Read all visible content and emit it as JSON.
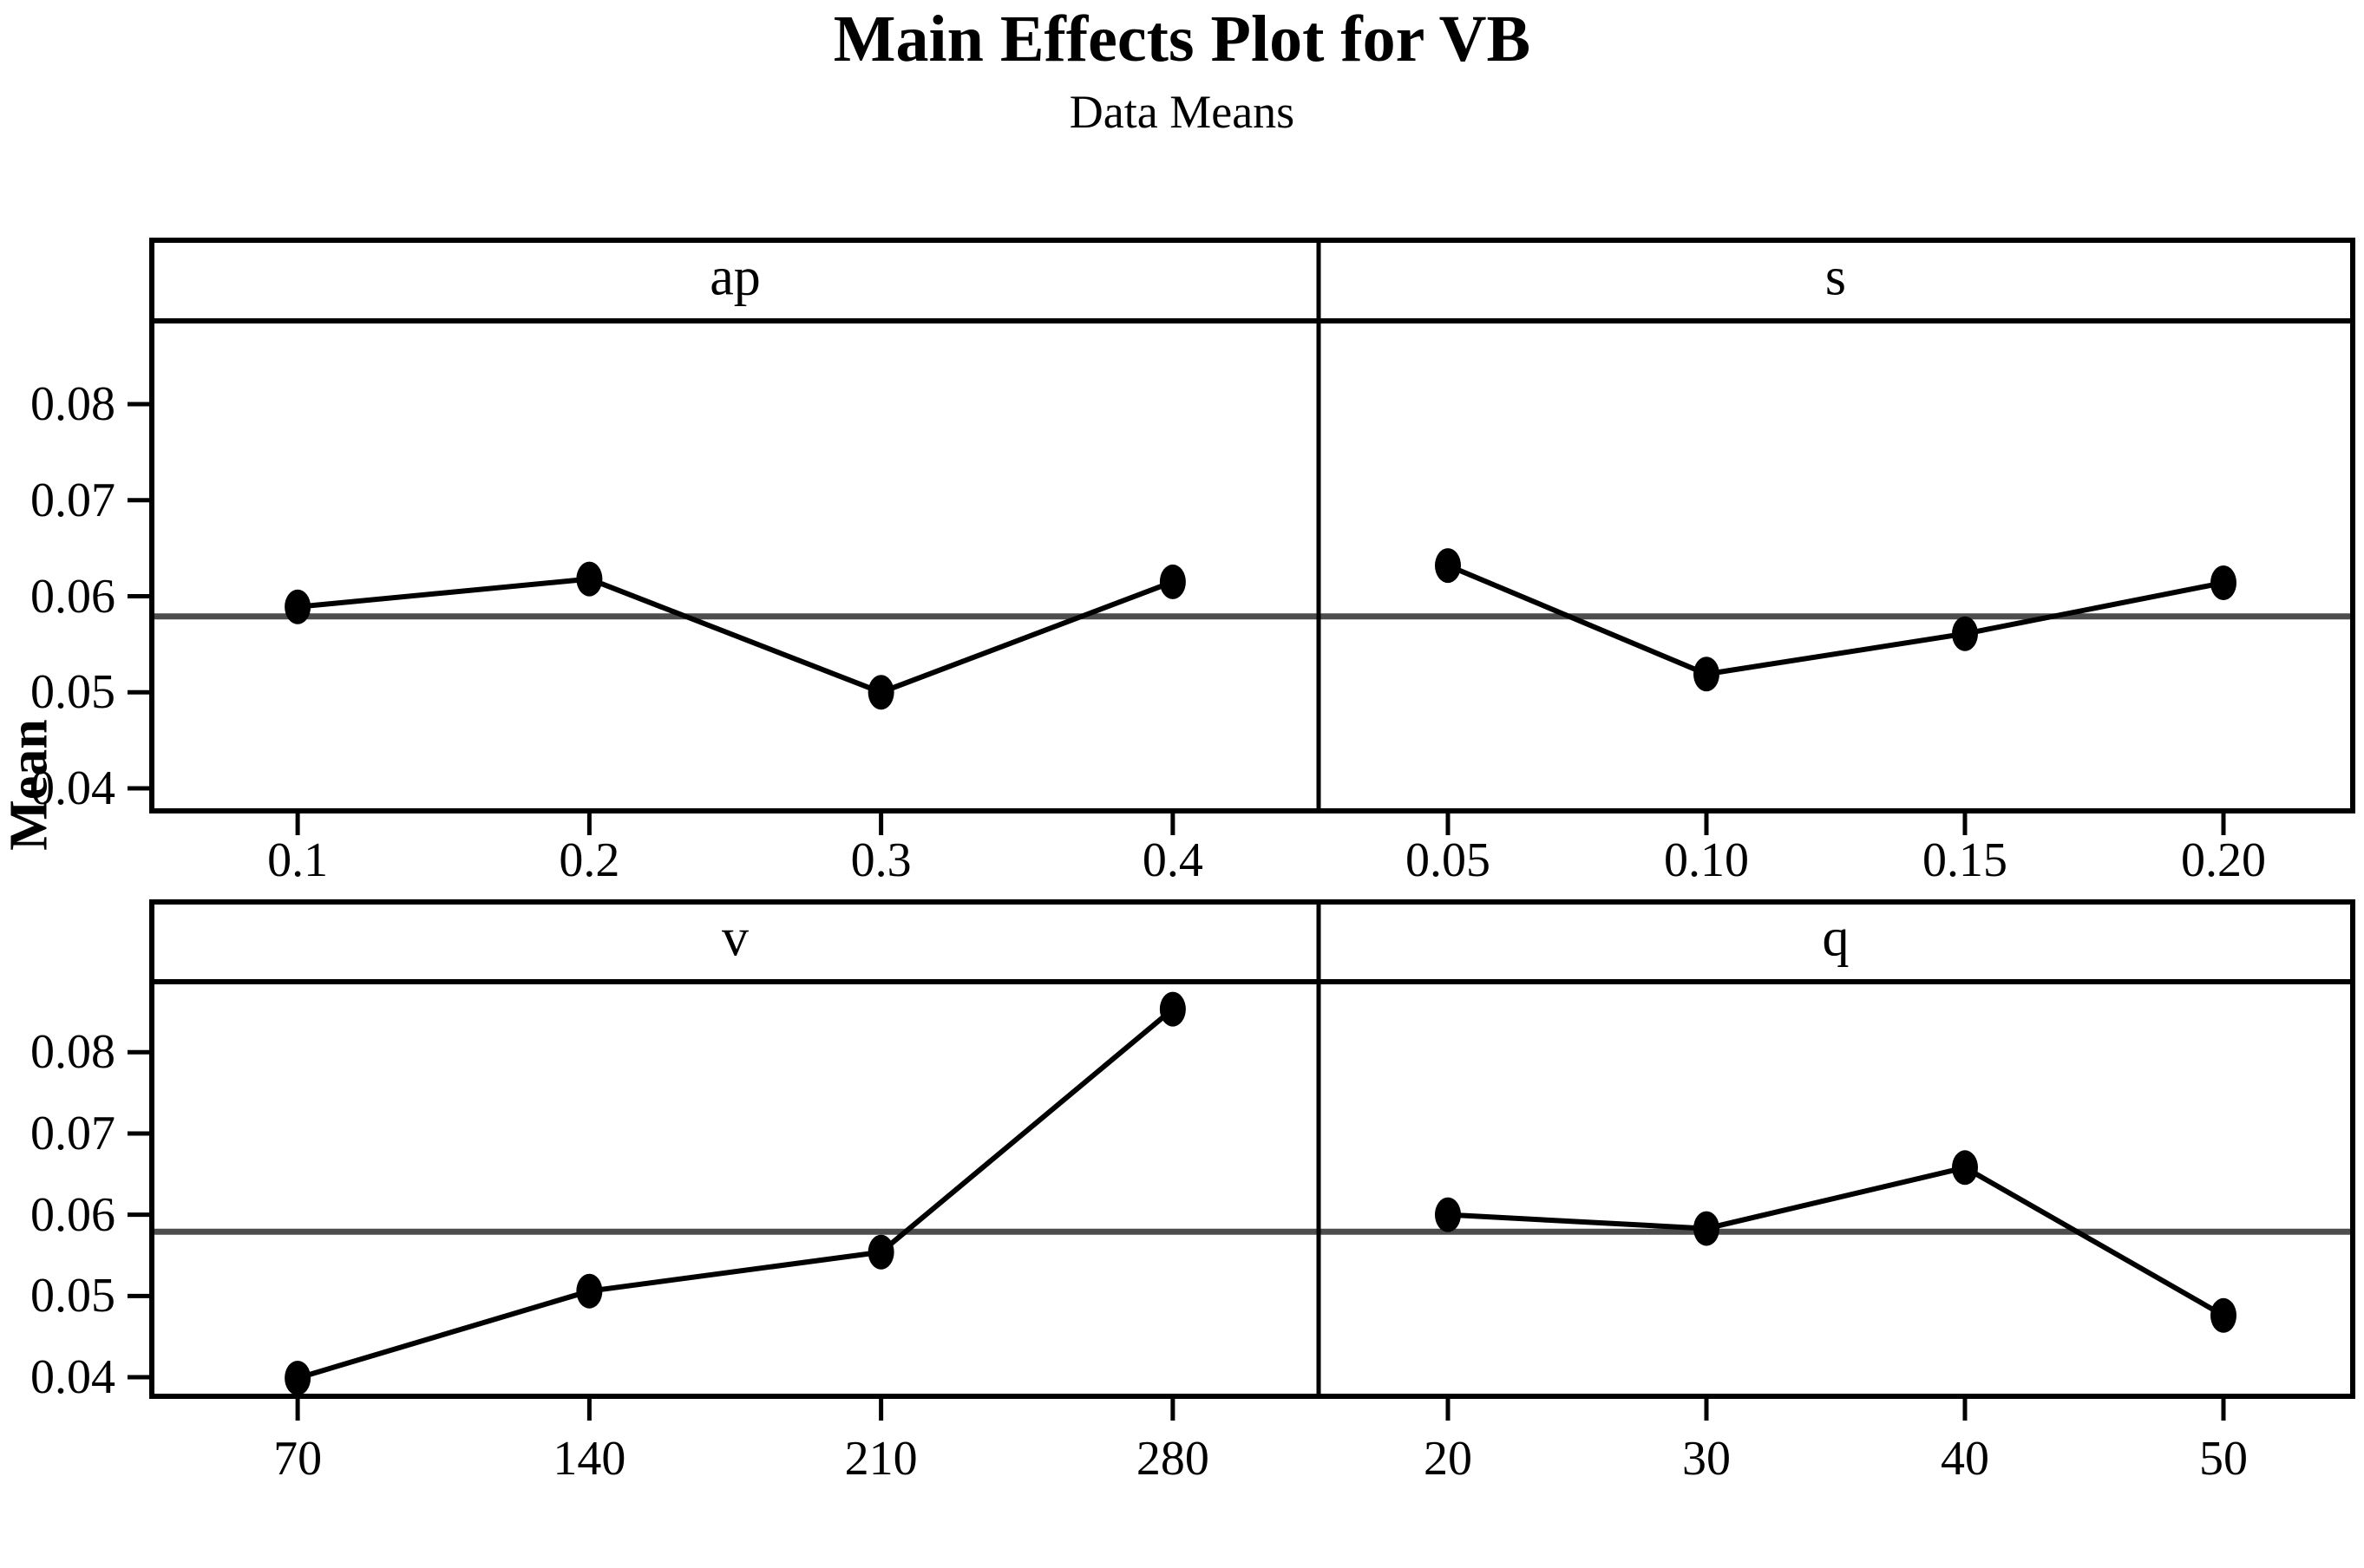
{
  "header": {
    "title": "Main Effects Plot for VB",
    "subtitle": "Data Means"
  },
  "y_axis": {
    "label": "Mean"
  },
  "colors": {
    "line": "#000000",
    "marker": "#000000",
    "reference_line": "#4d4d4d",
    "border": "#000000",
    "background": "#ffffff"
  },
  "chart_data": {
    "type": "line",
    "title": "Main Effects Plot for VB",
    "subtitle": "Data Means",
    "ylabel": "Mean",
    "y_tick_labels": [
      "0.08",
      "0.07",
      "0.06",
      "0.05",
      "0.04"
    ],
    "y_tick_values": [
      0.08,
      0.07,
      0.06,
      0.05,
      0.04
    ],
    "ylim": [
      0.0375,
      0.0887
    ],
    "grand_mean_reference": 0.0579,
    "grid": false,
    "legend": "none",
    "layout": "2x2 panels, shared y axis",
    "panels": [
      {
        "factor": "ap",
        "row": 0,
        "col": 0,
        "x_tick_labels": [
          "0.1",
          "0.2",
          "0.3",
          "0.4"
        ],
        "x": [
          0.1,
          0.2,
          0.3,
          0.4
        ],
        "means": [
          0.0589,
          0.0618,
          0.05,
          0.0615
        ]
      },
      {
        "factor": "s",
        "row": 0,
        "col": 1,
        "x_tick_labels": [
          "0.05",
          "0.10",
          "0.15",
          "0.20"
        ],
        "x": [
          0.05,
          0.1,
          0.15,
          0.2
        ],
        "means": [
          0.0632,
          0.0519,
          0.0561,
          0.0614
        ]
      },
      {
        "factor": "v",
        "row": 1,
        "col": 0,
        "x_tick_labels": [
          "70",
          "140",
          "210",
          "280"
        ],
        "x": [
          70,
          140,
          210,
          280
        ],
        "means": [
          0.0399,
          0.0506,
          0.0554,
          0.0853
        ]
      },
      {
        "factor": "q",
        "row": 1,
        "col": 1,
        "x_tick_labels": [
          "20",
          "30",
          "40",
          "50"
        ],
        "x": [
          20,
          30,
          40,
          50
        ],
        "means": [
          0.06,
          0.0583,
          0.0658,
          0.0476
        ]
      }
    ]
  }
}
